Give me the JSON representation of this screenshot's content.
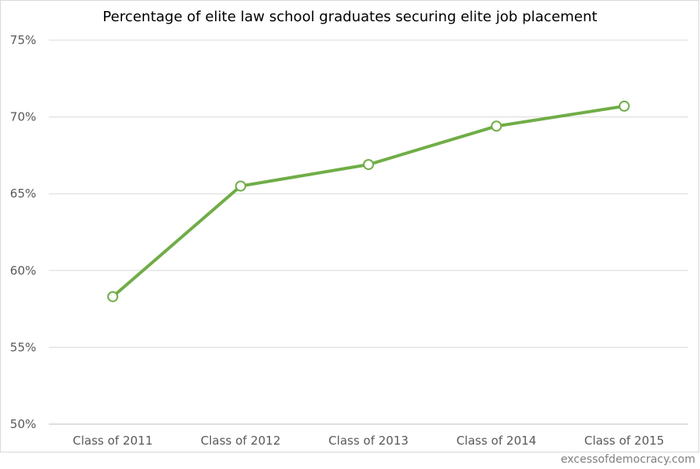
{
  "chart_data": {
    "type": "line",
    "title": "Percentage of elite law school graduates securing elite job placement",
    "xlabel": "",
    "ylabel": "",
    "categories": [
      "Class of 2011",
      "Class of 2012",
      "Class of 2013",
      "Class of 2014",
      "Class of 2015"
    ],
    "series": [
      {
        "values": [
          58.3,
          65.5,
          66.9,
          69.4,
          70.7
        ],
        "color": "#70ad47"
      }
    ],
    "ylim": [
      50,
      75
    ],
    "yticks": [
      50,
      55,
      60,
      65,
      70,
      75
    ],
    "ytick_labels": [
      "50%",
      "55%",
      "60%",
      "65%",
      "70%",
      "75%"
    ],
    "grid": true,
    "legend": "none",
    "marker": "open-circle"
  },
  "footer": {
    "source": "excessofdemocracy.com"
  }
}
